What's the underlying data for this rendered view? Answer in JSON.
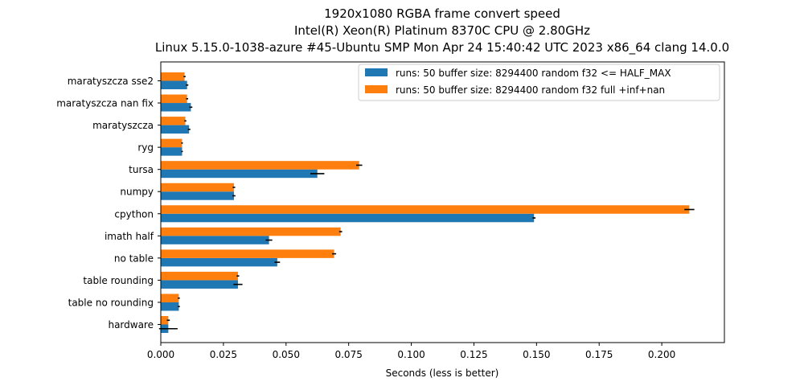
{
  "chart_data": {
    "type": "bar",
    "orientation": "horizontal",
    "title_lines": [
      "1920x1080 RGBA frame convert speed",
      "Intel(R) Xeon(R) Platinum 8370C CPU @ 2.80GHz",
      "Linux 5.15.0-1038-azure #45-Ubuntu SMP Mon Apr 24 15:40:42 UTC 2023 x86_64 clang 14.0.0"
    ],
    "xlabel": "Seconds (less is better)",
    "ylabel": "",
    "xlim": [
      0,
      0.225
    ],
    "xticks": [
      "0.000",
      "0.025",
      "0.050",
      "0.075",
      "0.100",
      "0.125",
      "0.150",
      "0.175",
      "0.200"
    ],
    "categories": [
      "maratyszcza sse2",
      "maratyszcza nan fix",
      "maratyszcza",
      "ryg",
      "tursa",
      "numpy",
      "cpython",
      "imath half",
      "no table",
      "table rounding",
      "table no rounding",
      "hardware"
    ],
    "series": [
      {
        "name": "runs: 50 buffer size: 8294400 random f32 <= HALF_MAX",
        "color": "#1f77b4",
        "values": [
          0.0105,
          0.012,
          0.0113,
          0.0085,
          0.0625,
          0.0292,
          0.149,
          0.0432,
          0.0465,
          0.0308,
          0.0072,
          0.003
        ],
        "errors": [
          0.0005,
          0.0006,
          0.0005,
          0.0003,
          0.0028,
          0.0006,
          0.0006,
          0.0013,
          0.0011,
          0.0018,
          0.0004,
          0.0037
        ]
      },
      {
        "name": "runs: 50 buffer size: 8294400 random f32 full +inf+nan",
        "color": "#ff7f0e",
        "values": [
          0.0095,
          0.0105,
          0.0098,
          0.0085,
          0.0792,
          0.0292,
          0.211,
          0.0718,
          0.0692,
          0.0308,
          0.0072,
          0.003
        ],
        "errors": [
          0.0004,
          0.0004,
          0.0004,
          0.0003,
          0.0012,
          0.0005,
          0.002,
          0.0006,
          0.0008,
          0.0005,
          0.0004,
          0.0006
        ]
      }
    ],
    "legend_position": "top-right",
    "grid": false
  }
}
